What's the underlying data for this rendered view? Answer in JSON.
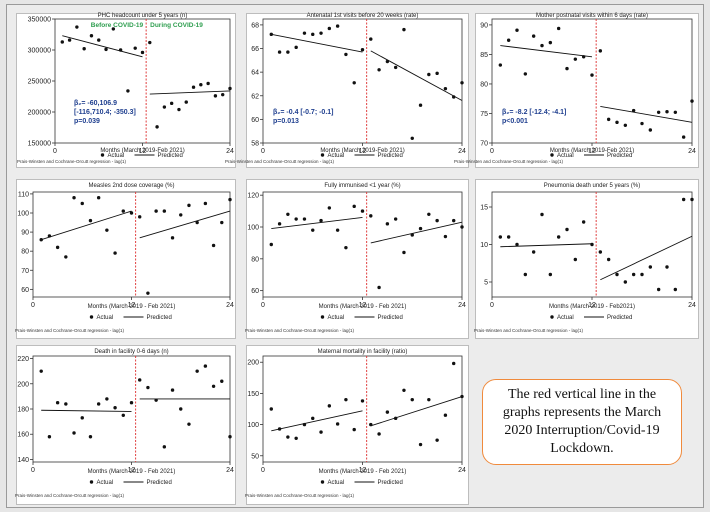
{
  "legend": {
    "actual": "Actual",
    "predicted": "Predicted"
  },
  "note": "The red vertical line in the graphs represents the March 2020 Interruption/Covid-19 Lockdown.",
  "colors": {
    "interruption_line": "#e04040",
    "period_label": "#2e9e4f",
    "stats_text": "#1f3f8f",
    "points": "#111111"
  },
  "chart_data": [
    {
      "type": "scatter",
      "title": "PHC headcount under 5 years (n)",
      "xlabel": "Months (March 2019-Feb 2021)",
      "footnote": "Prais-Winsten and Cochrane-Orcutt regression - lag(1)",
      "ylim": [
        150000,
        350000
      ],
      "yticks": [
        150000,
        200000,
        250000,
        300000,
        350000
      ],
      "ytick_labels": [
        "150000",
        "200000",
        "250000",
        "300000",
        "350000"
      ],
      "xlim": [
        0,
        24
      ],
      "xticks": [
        0,
        12,
        24
      ],
      "interruption": 12.5,
      "period_labels": [
        "Before COVID-19",
        "During COVID-19"
      ],
      "stats": [
        "β₂= -60,106.9",
        "[-116,710.4; -350.3]",
        "p=0.039"
      ],
      "points": [
        [
          1,
          313000
        ],
        [
          2,
          316000
        ],
        [
          3,
          337000
        ],
        [
          4,
          302000
        ],
        [
          5,
          323000
        ],
        [
          6,
          316000
        ],
        [
          7,
          301000
        ],
        [
          8,
          334000
        ],
        [
          9,
          300000
        ],
        [
          10,
          234000
        ],
        [
          11,
          303000
        ],
        [
          12,
          296000
        ],
        [
          13,
          312000
        ],
        [
          14,
          176000
        ],
        [
          15,
          208000
        ],
        [
          16,
          214000
        ],
        [
          17,
          204000
        ],
        [
          18,
          216000
        ],
        [
          19,
          240000
        ],
        [
          20,
          244000
        ],
        [
          21,
          246000
        ],
        [
          22,
          226000
        ],
        [
          23,
          228000
        ],
        [
          24,
          238000
        ]
      ],
      "pred_pre": [
        [
          1,
          323000
        ],
        [
          12,
          289000
        ]
      ],
      "pred_post": [
        [
          13,
          229000
        ],
        [
          24,
          234000
        ]
      ]
    },
    {
      "type": "scatter",
      "title": "Antenatal 1st visits before 20 weeks (rate)",
      "xlabel": "Months (March 2019-Feb 2021)",
      "footnote": "Prais-Winsten and Cochrane-Orcutt regression - lag(1)",
      "ylim": [
        58,
        68.5
      ],
      "yticks": [
        58,
        60,
        62,
        64,
        66,
        68
      ],
      "ytick_labels": [
        "58",
        "60",
        "62",
        "64",
        "66",
        "68"
      ],
      "xlim": [
        0,
        24
      ],
      "xticks": [
        0,
        12,
        24
      ],
      "interruption": 12.5,
      "stats": [
        "β₂= -0.4 [-0.7; -0.1]",
        "p=0.013"
      ],
      "points": [
        [
          1,
          67.2
        ],
        [
          2,
          65.7
        ],
        [
          3,
          65.7
        ],
        [
          4,
          66.1
        ],
        [
          5,
          67.3
        ],
        [
          6,
          67.2
        ],
        [
          7,
          67.3
        ],
        [
          8,
          67.7
        ],
        [
          9,
          67.9
        ],
        [
          10,
          65.5
        ],
        [
          11,
          63.1
        ],
        [
          12,
          65.9
        ],
        [
          13,
          66.8
        ],
        [
          14,
          64.2
        ],
        [
          15,
          64.9
        ],
        [
          16,
          64.4
        ],
        [
          17,
          67.6
        ],
        [
          18,
          58.4
        ],
        [
          19,
          61.2
        ],
        [
          20,
          63.8
        ],
        [
          21,
          63.9
        ],
        [
          22,
          62.6
        ],
        [
          23,
          61.9
        ],
        [
          24,
          63.1
        ]
      ],
      "pred_pre": [
        [
          1,
          67.2
        ],
        [
          12,
          65.7
        ]
      ],
      "pred_post": [
        [
          13,
          65.8
        ],
        [
          24,
          61.6
        ]
      ]
    },
    {
      "type": "scatter",
      "title": "Mother postnatal visits within 6 days (rate)",
      "xlabel": "Months (March 2019-Feb 2021)",
      "footnote": "Prais-Winsten and Cochrane-Orcutt regression - lag(1)",
      "ylim": [
        70,
        91
      ],
      "yticks": [
        70,
        75,
        80,
        85,
        90
      ],
      "ytick_labels": [
        "70",
        "75",
        "80",
        "85",
        "90"
      ],
      "xlim": [
        0,
        24
      ],
      "xticks": [
        0,
        12,
        24
      ],
      "interruption": 12.5,
      "stats": [
        "β₂= -8.2 [-12.4; -4.1]",
        "p<0.001"
      ],
      "points": [
        [
          1,
          83.2
        ],
        [
          2,
          87.4
        ],
        [
          3,
          89.1
        ],
        [
          4,
          81.7
        ],
        [
          5,
          88.1
        ],
        [
          6,
          86.5
        ],
        [
          7,
          87.0
        ],
        [
          8,
          89.4
        ],
        [
          9,
          82.6
        ],
        [
          10,
          84.2
        ],
        [
          11,
          84.6
        ],
        [
          12,
          81.5
        ],
        [
          13,
          85.6
        ],
        [
          14,
          74.0
        ],
        [
          15,
          73.5
        ],
        [
          16,
          73.0
        ],
        [
          17,
          75.5
        ],
        [
          18,
          73.3
        ],
        [
          19,
          72.2
        ],
        [
          20,
          75.2
        ],
        [
          21,
          75.3
        ],
        [
          22,
          75.2
        ],
        [
          23,
          71.0
        ],
        [
          24,
          77.1
        ]
      ],
      "pred_pre": [
        [
          1,
          86.5
        ],
        [
          12,
          84.6
        ]
      ],
      "pred_post": [
        [
          13,
          76.2
        ],
        [
          24,
          73.5
        ]
      ]
    },
    {
      "type": "scatter",
      "title": "Measles 2nd dose coverage (%)",
      "xlabel": "Months (March 2019 - Feb 2021)",
      "footnote": "Prais-Winsten and Cochrane-Orcutt regression - lag(1)",
      "ylim": [
        56,
        111
      ],
      "yticks": [
        60,
        70,
        80,
        90,
        100,
        110
      ],
      "ytick_labels": [
        "60",
        "70",
        "80",
        "90",
        "100",
        "110"
      ],
      "xlim": [
        0,
        24
      ],
      "xticks": [
        0,
        12,
        24
      ],
      "interruption": 12.5,
      "points": [
        [
          1,
          86
        ],
        [
          2,
          88
        ],
        [
          3,
          82
        ],
        [
          4,
          77
        ],
        [
          5,
          108
        ],
        [
          6,
          105
        ],
        [
          7,
          96
        ],
        [
          8,
          108
        ],
        [
          9,
          91
        ],
        [
          10,
          79
        ],
        [
          11,
          101
        ],
        [
          12,
          100
        ],
        [
          13,
          98
        ],
        [
          14,
          58
        ],
        [
          15,
          101
        ],
        [
          16,
          101
        ],
        [
          17,
          87
        ],
        [
          18,
          99
        ],
        [
          19,
          104
        ],
        [
          20,
          95
        ],
        [
          21,
          105
        ],
        [
          22,
          83
        ],
        [
          23,
          95
        ],
        [
          24,
          107
        ]
      ],
      "pred_pre": [
        [
          1,
          86
        ],
        [
          12,
          101
        ]
      ],
      "pred_post": [
        [
          13,
          87
        ],
        [
          24,
          101
        ]
      ]
    },
    {
      "type": "scatter",
      "title": "Fully immunised <1 year (%)",
      "xlabel": "Months (March 2019 - Feb 2021)",
      "footnote": "Prais-Winsten and Cochrane-Orcutt regression - lag(1)",
      "ylim": [
        56,
        122
      ],
      "yticks": [
        60,
        80,
        100,
        120
      ],
      "ytick_labels": [
        "60",
        "80",
        "100",
        "120"
      ],
      "xlim": [
        0,
        24
      ],
      "xticks": [
        0,
        12,
        24
      ],
      "interruption": 12.5,
      "points": [
        [
          1,
          89
        ],
        [
          2,
          102
        ],
        [
          3,
          108
        ],
        [
          4,
          105
        ],
        [
          5,
          105
        ],
        [
          6,
          98
        ],
        [
          7,
          104
        ],
        [
          8,
          112
        ],
        [
          9,
          98
        ],
        [
          10,
          87
        ],
        [
          11,
          113
        ],
        [
          12,
          110
        ],
        [
          13,
          107
        ],
        [
          14,
          62
        ],
        [
          15,
          102
        ],
        [
          16,
          105
        ],
        [
          17,
          84
        ],
        [
          18,
          95
        ],
        [
          19,
          99
        ],
        [
          20,
          108
        ],
        [
          21,
          104
        ],
        [
          22,
          94
        ],
        [
          23,
          104
        ],
        [
          24,
          100
        ]
      ],
      "pred_pre": [
        [
          1,
          99
        ],
        [
          12,
          106
        ]
      ],
      "pred_post": [
        [
          13,
          90
        ],
        [
          24,
          103
        ]
      ]
    },
    {
      "type": "scatter",
      "title": "Pneumonia death under 5 years (%)",
      "xlabel": "Months (March 2019 - Feb2021)",
      "footnote": "Prais-Winsten and Cochrane-Orcutt regression - lag(1)",
      "ylim": [
        3,
        17
      ],
      "yticks": [
        5,
        10,
        15
      ],
      "ytick_labels": [
        "5",
        "10",
        "15"
      ],
      "xlim": [
        0,
        24
      ],
      "xticks": [
        0,
        12,
        24
      ],
      "interruption": 12.5,
      "points": [
        [
          1,
          11
        ],
        [
          2,
          11
        ],
        [
          3,
          10
        ],
        [
          4,
          6
        ],
        [
          5,
          9
        ],
        [
          6,
          14
        ],
        [
          7,
          6
        ],
        [
          8,
          11
        ],
        [
          9,
          12
        ],
        [
          10,
          8
        ],
        [
          11,
          13
        ],
        [
          12,
          10
        ],
        [
          13,
          9
        ],
        [
          14,
          8
        ],
        [
          15,
          6
        ],
        [
          16,
          5
        ],
        [
          17,
          6
        ],
        [
          18,
          6
        ],
        [
          19,
          7
        ],
        [
          20,
          4
        ],
        [
          21,
          7
        ],
        [
          22,
          4
        ],
        [
          23,
          16
        ],
        [
          24,
          16
        ]
      ],
      "pred_pre": [
        [
          1,
          9.7
        ],
        [
          12,
          10.1
        ]
      ],
      "pred_post": [
        [
          13,
          5.3
        ],
        [
          24,
          11.1
        ]
      ]
    },
    {
      "type": "scatter",
      "title": "Death in facility 0-6 days (n)",
      "xlabel": "Months (March 2019 - Feb 2021)",
      "footnote": "Prais-Winsten and Cochrane-Orcutt regression - lag(1)",
      "ylim": [
        138,
        222
      ],
      "yticks": [
        140,
        160,
        180,
        200,
        220
      ],
      "ytick_labels": [
        "140",
        "160",
        "180",
        "200",
        "220"
      ],
      "xlim": [
        0,
        24
      ],
      "xticks": [
        0,
        12,
        24
      ],
      "interruption": 12.5,
      "points": [
        [
          1,
          210
        ],
        [
          2,
          158
        ],
        [
          3,
          185
        ],
        [
          4,
          184
        ],
        [
          5,
          161
        ],
        [
          6,
          173
        ],
        [
          7,
          158
        ],
        [
          8,
          184
        ],
        [
          9,
          188
        ],
        [
          10,
          181
        ],
        [
          11,
          175
        ],
        [
          12,
          185
        ],
        [
          13,
          203
        ],
        [
          14,
          197
        ],
        [
          15,
          187
        ],
        [
          16,
          150
        ],
        [
          17,
          195
        ],
        [
          18,
          180
        ],
        [
          19,
          168
        ],
        [
          20,
          210
        ],
        [
          21,
          214
        ],
        [
          22,
          198
        ],
        [
          23,
          202
        ],
        [
          24,
          158
        ]
      ],
      "pred_pre": [
        [
          1,
          179
        ],
        [
          12,
          178
        ]
      ],
      "pred_post": [
        [
          13,
          188
        ],
        [
          24,
          188
        ]
      ]
    },
    {
      "type": "scatter",
      "title": "Maternal mortality in facility (ratio)",
      "xlabel": "Months (March 2019 - Feb 2021)",
      "footnote": "Prais-Winsten and Cochrane-Orcutt regression - lag(1)",
      "ylim": [
        40,
        210
      ],
      "yticks": [
        50,
        100,
        150,
        200
      ],
      "ytick_labels": [
        "50",
        "100",
        "150",
        "200"
      ],
      "xlim": [
        0,
        24
      ],
      "xticks": [
        0,
        12,
        24
      ],
      "interruption": 12.5,
      "points": [
        [
          1,
          125
        ],
        [
          2,
          93
        ],
        [
          3,
          80
        ],
        [
          4,
          78
        ],
        [
          5,
          100
        ],
        [
          6,
          110
        ],
        [
          7,
          88
        ],
        [
          8,
          130
        ],
        [
          9,
          101
        ],
        [
          10,
          140
        ],
        [
          11,
          92
        ],
        [
          12,
          138
        ],
        [
          13,
          100
        ],
        [
          14,
          85
        ],
        [
          15,
          120
        ],
        [
          16,
          110
        ],
        [
          17,
          155
        ],
        [
          18,
          140
        ],
        [
          19,
          68
        ],
        [
          20,
          140
        ],
        [
          21,
          75
        ],
        [
          22,
          115
        ],
        [
          23,
          198
        ],
        [
          24,
          145
        ]
      ],
      "pred_pre": [
        [
          1,
          90
        ],
        [
          12,
          122
        ]
      ],
      "pred_post": [
        [
          13,
          98
        ],
        [
          24,
          145
        ]
      ]
    }
  ]
}
